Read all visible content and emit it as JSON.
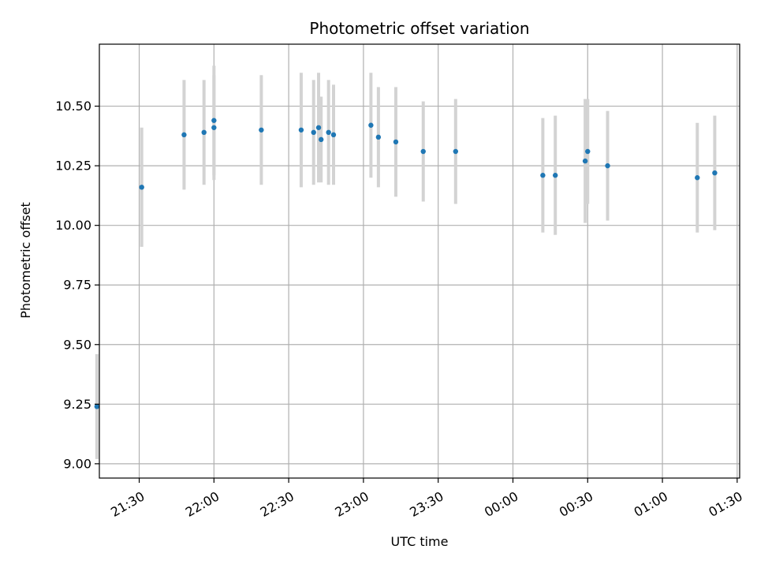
{
  "chart_data": {
    "type": "scatter",
    "title": "Photometric offset variation",
    "xlabel": "UTC time",
    "ylabel": "Photometric offset",
    "xlim": [
      "21:14",
      "01:31"
    ],
    "ylim": [
      8.94,
      10.76
    ],
    "xticks": [
      "21:30",
      "22:00",
      "22:30",
      "23:00",
      "23:30",
      "00:00",
      "00:30",
      "01:00",
      "01:30"
    ],
    "yticks": [
      "9.00",
      "9.25",
      "9.50",
      "9.75",
      "10.00",
      "10.25",
      "10.50"
    ],
    "ytick_values": [
      9.0,
      9.25,
      9.5,
      9.75,
      10.0,
      10.25,
      10.5
    ],
    "grid": true,
    "marker_color": "#1f77b4",
    "errorbar_color": "#d3d3d3",
    "points": [
      {
        "x": "21:13",
        "y": 9.24,
        "err": 0.22
      },
      {
        "x": "21:31",
        "y": 10.16,
        "err": 0.25
      },
      {
        "x": "21:48",
        "y": 10.38,
        "err": 0.23
      },
      {
        "x": "21:56",
        "y": 10.39,
        "err": 0.22
      },
      {
        "x": "22:00",
        "y": 10.44,
        "err": 0.23
      },
      {
        "x": "22:00",
        "y": 10.41,
        "err": 0.22
      },
      {
        "x": "22:19",
        "y": 10.4,
        "err": 0.23
      },
      {
        "x": "22:35",
        "y": 10.4,
        "err": 0.24
      },
      {
        "x": "22:40",
        "y": 10.39,
        "err": 0.22
      },
      {
        "x": "22:42",
        "y": 10.41,
        "err": 0.23
      },
      {
        "x": "22:43",
        "y": 10.36,
        "err": 0.18
      },
      {
        "x": "22:46",
        "y": 10.39,
        "err": 0.22
      },
      {
        "x": "22:48",
        "y": 10.38,
        "err": 0.21
      },
      {
        "x": "23:03",
        "y": 10.42,
        "err": 0.22
      },
      {
        "x": "23:06",
        "y": 10.37,
        "err": 0.21
      },
      {
        "x": "23:13",
        "y": 10.35,
        "err": 0.23
      },
      {
        "x": "23:24",
        "y": 10.31,
        "err": 0.21
      },
      {
        "x": "23:37",
        "y": 10.31,
        "err": 0.22
      },
      {
        "x": "00:12",
        "y": 10.21,
        "err": 0.24
      },
      {
        "x": "00:17",
        "y": 10.21,
        "err": 0.25
      },
      {
        "x": "00:29",
        "y": 10.27,
        "err": 0.26
      },
      {
        "x": "00:30",
        "y": 10.31,
        "err": 0.22
      },
      {
        "x": "00:38",
        "y": 10.25,
        "err": 0.23
      },
      {
        "x": "01:14",
        "y": 10.2,
        "err": 0.23
      },
      {
        "x": "01:21",
        "y": 10.22,
        "err": 0.24
      }
    ]
  }
}
